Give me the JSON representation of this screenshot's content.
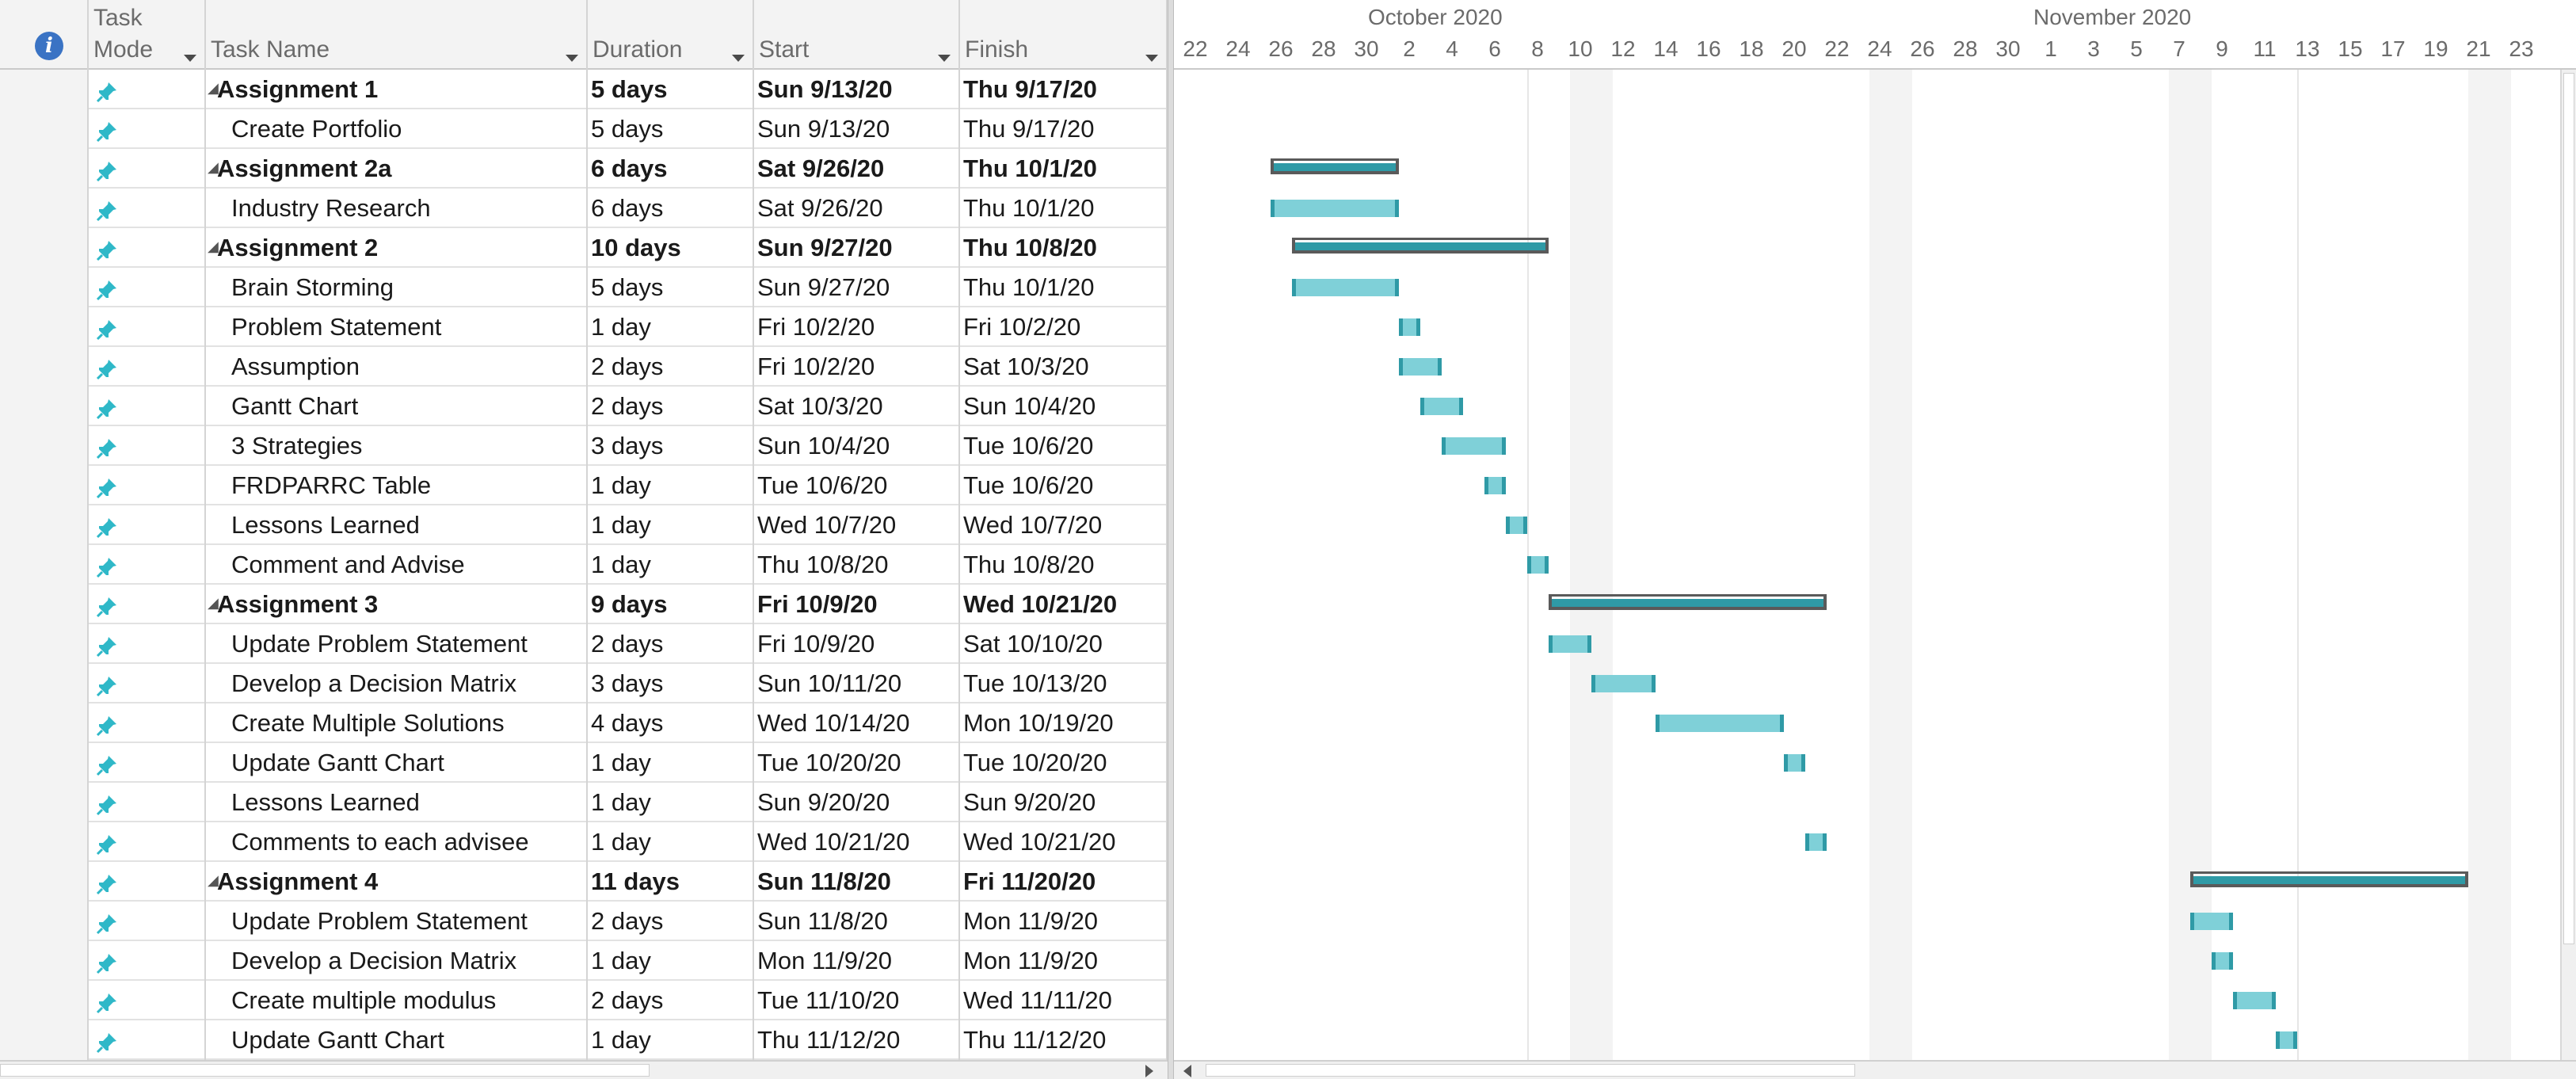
{
  "header": {
    "task_mode_line1": "Task",
    "task_mode_line2": "Mode",
    "task_name": "Task Name",
    "duration": "Duration",
    "start": "Start",
    "finish": "Finish"
  },
  "icons": {
    "info": "info-icon",
    "task_mode": "pin-icon",
    "summary_toggle": "collapse-triangle-icon"
  },
  "colors": {
    "bar_fill": "#7fd0d8",
    "bar_edge": "#2f9aa6",
    "summary_outline": "#5a5a5a",
    "pin": "#2fb8c8",
    "info": "#3a73c4"
  },
  "timeline": {
    "months": [
      {
        "label": "October 2020"
      },
      {
        "label": "November 2020"
      }
    ],
    "days": [
      "22",
      "24",
      "26",
      "28",
      "30",
      "2",
      "4",
      "6",
      "8",
      "10",
      "12",
      "14",
      "16",
      "18",
      "20",
      "22",
      "24",
      "26",
      "28",
      "30",
      "1",
      "3",
      "5",
      "7",
      "9",
      "11",
      "13",
      "15",
      "17",
      "19",
      "21",
      "23"
    ]
  },
  "tasks": [
    {
      "name": "Assignment 1",
      "duration": "5 days",
      "start": "Sun 9/13/20",
      "finish": "Thu 9/17/20",
      "summary": true
    },
    {
      "name": "Create Portfolio",
      "duration": "5 days",
      "start": "Sun 9/13/20",
      "finish": "Thu 9/17/20",
      "summary": false
    },
    {
      "name": "Assignment 2a",
      "duration": "6 days",
      "start": "Sat 9/26/20",
      "finish": "Thu 10/1/20",
      "summary": true
    },
    {
      "name": "Industry Research",
      "duration": "6 days",
      "start": "Sat 9/26/20",
      "finish": "Thu 10/1/20",
      "summary": false
    },
    {
      "name": "Assignment 2",
      "duration": "10 days",
      "start": "Sun 9/27/20",
      "finish": "Thu 10/8/20",
      "summary": true
    },
    {
      "name": "Brain Storming",
      "duration": "5 days",
      "start": "Sun 9/27/20",
      "finish": "Thu 10/1/20",
      "summary": false
    },
    {
      "name": "Problem Statement",
      "duration": "1 day",
      "start": "Fri 10/2/20",
      "finish": "Fri 10/2/20",
      "summary": false
    },
    {
      "name": "Assumption",
      "duration": "2 days",
      "start": "Fri 10/2/20",
      "finish": "Sat 10/3/20",
      "summary": false
    },
    {
      "name": "Gantt Chart",
      "duration": "2 days",
      "start": "Sat 10/3/20",
      "finish": "Sun 10/4/20",
      "summary": false
    },
    {
      "name": "3 Strategies",
      "duration": "3 days",
      "start": "Sun 10/4/20",
      "finish": "Tue 10/6/20",
      "summary": false
    },
    {
      "name": "FRDPARRC Table",
      "duration": "1 day",
      "start": "Tue 10/6/20",
      "finish": "Tue 10/6/20",
      "summary": false
    },
    {
      "name": "Lessons Learned",
      "duration": "1 day",
      "start": "Wed 10/7/20",
      "finish": "Wed 10/7/20",
      "summary": false
    },
    {
      "name": "Comment and Advise",
      "duration": "1 day",
      "start": "Thu 10/8/20",
      "finish": "Thu 10/8/20",
      "summary": false
    },
    {
      "name": "Assignment 3",
      "duration": "9 days",
      "start": "Fri 10/9/20",
      "finish": "Wed 10/21/20",
      "summary": true
    },
    {
      "name": "Update Problem Statement",
      "duration": "2 days",
      "start": "Fri 10/9/20",
      "finish": "Sat 10/10/20",
      "summary": false
    },
    {
      "name": "Develop a Decision Matrix",
      "duration": "3 days",
      "start": "Sun 10/11/20",
      "finish": "Tue 10/13/20",
      "summary": false
    },
    {
      "name": "Create Multiple Solutions",
      "duration": "4 days",
      "start": "Wed 10/14/20",
      "finish": "Mon 10/19/20",
      "summary": false
    },
    {
      "name": "Update Gantt Chart",
      "duration": "1 day",
      "start": "Tue 10/20/20",
      "finish": "Tue 10/20/20",
      "summary": false
    },
    {
      "name": "Lessons Learned",
      "duration": "1 day",
      "start": "Sun 9/20/20",
      "finish": "Sun 9/20/20",
      "summary": false
    },
    {
      "name": "Comments to each advisee",
      "duration": "1 day",
      "start": "Wed 10/21/20",
      "finish": "Wed 10/21/20",
      "summary": false
    },
    {
      "name": "Assignment 4",
      "duration": "11 days",
      "start": "Sun 11/8/20",
      "finish": "Fri 11/20/20",
      "summary": true
    },
    {
      "name": "Update Problem Statement",
      "duration": "2 days",
      "start": "Sun 11/8/20",
      "finish": "Mon 11/9/20",
      "summary": false
    },
    {
      "name": "Develop a Decision Matrix",
      "duration": "1 day",
      "start": "Mon 11/9/20",
      "finish": "Mon 11/9/20",
      "summary": false
    },
    {
      "name": "Create multiple modulus",
      "duration": "2 days",
      "start": "Tue 11/10/20",
      "finish": "Wed 11/11/20",
      "summary": false
    },
    {
      "name": "Update Gantt Chart",
      "duration": "1 day",
      "start": "Thu 11/12/20",
      "finish": "Thu 11/12/20",
      "summary": false
    }
  ]
}
